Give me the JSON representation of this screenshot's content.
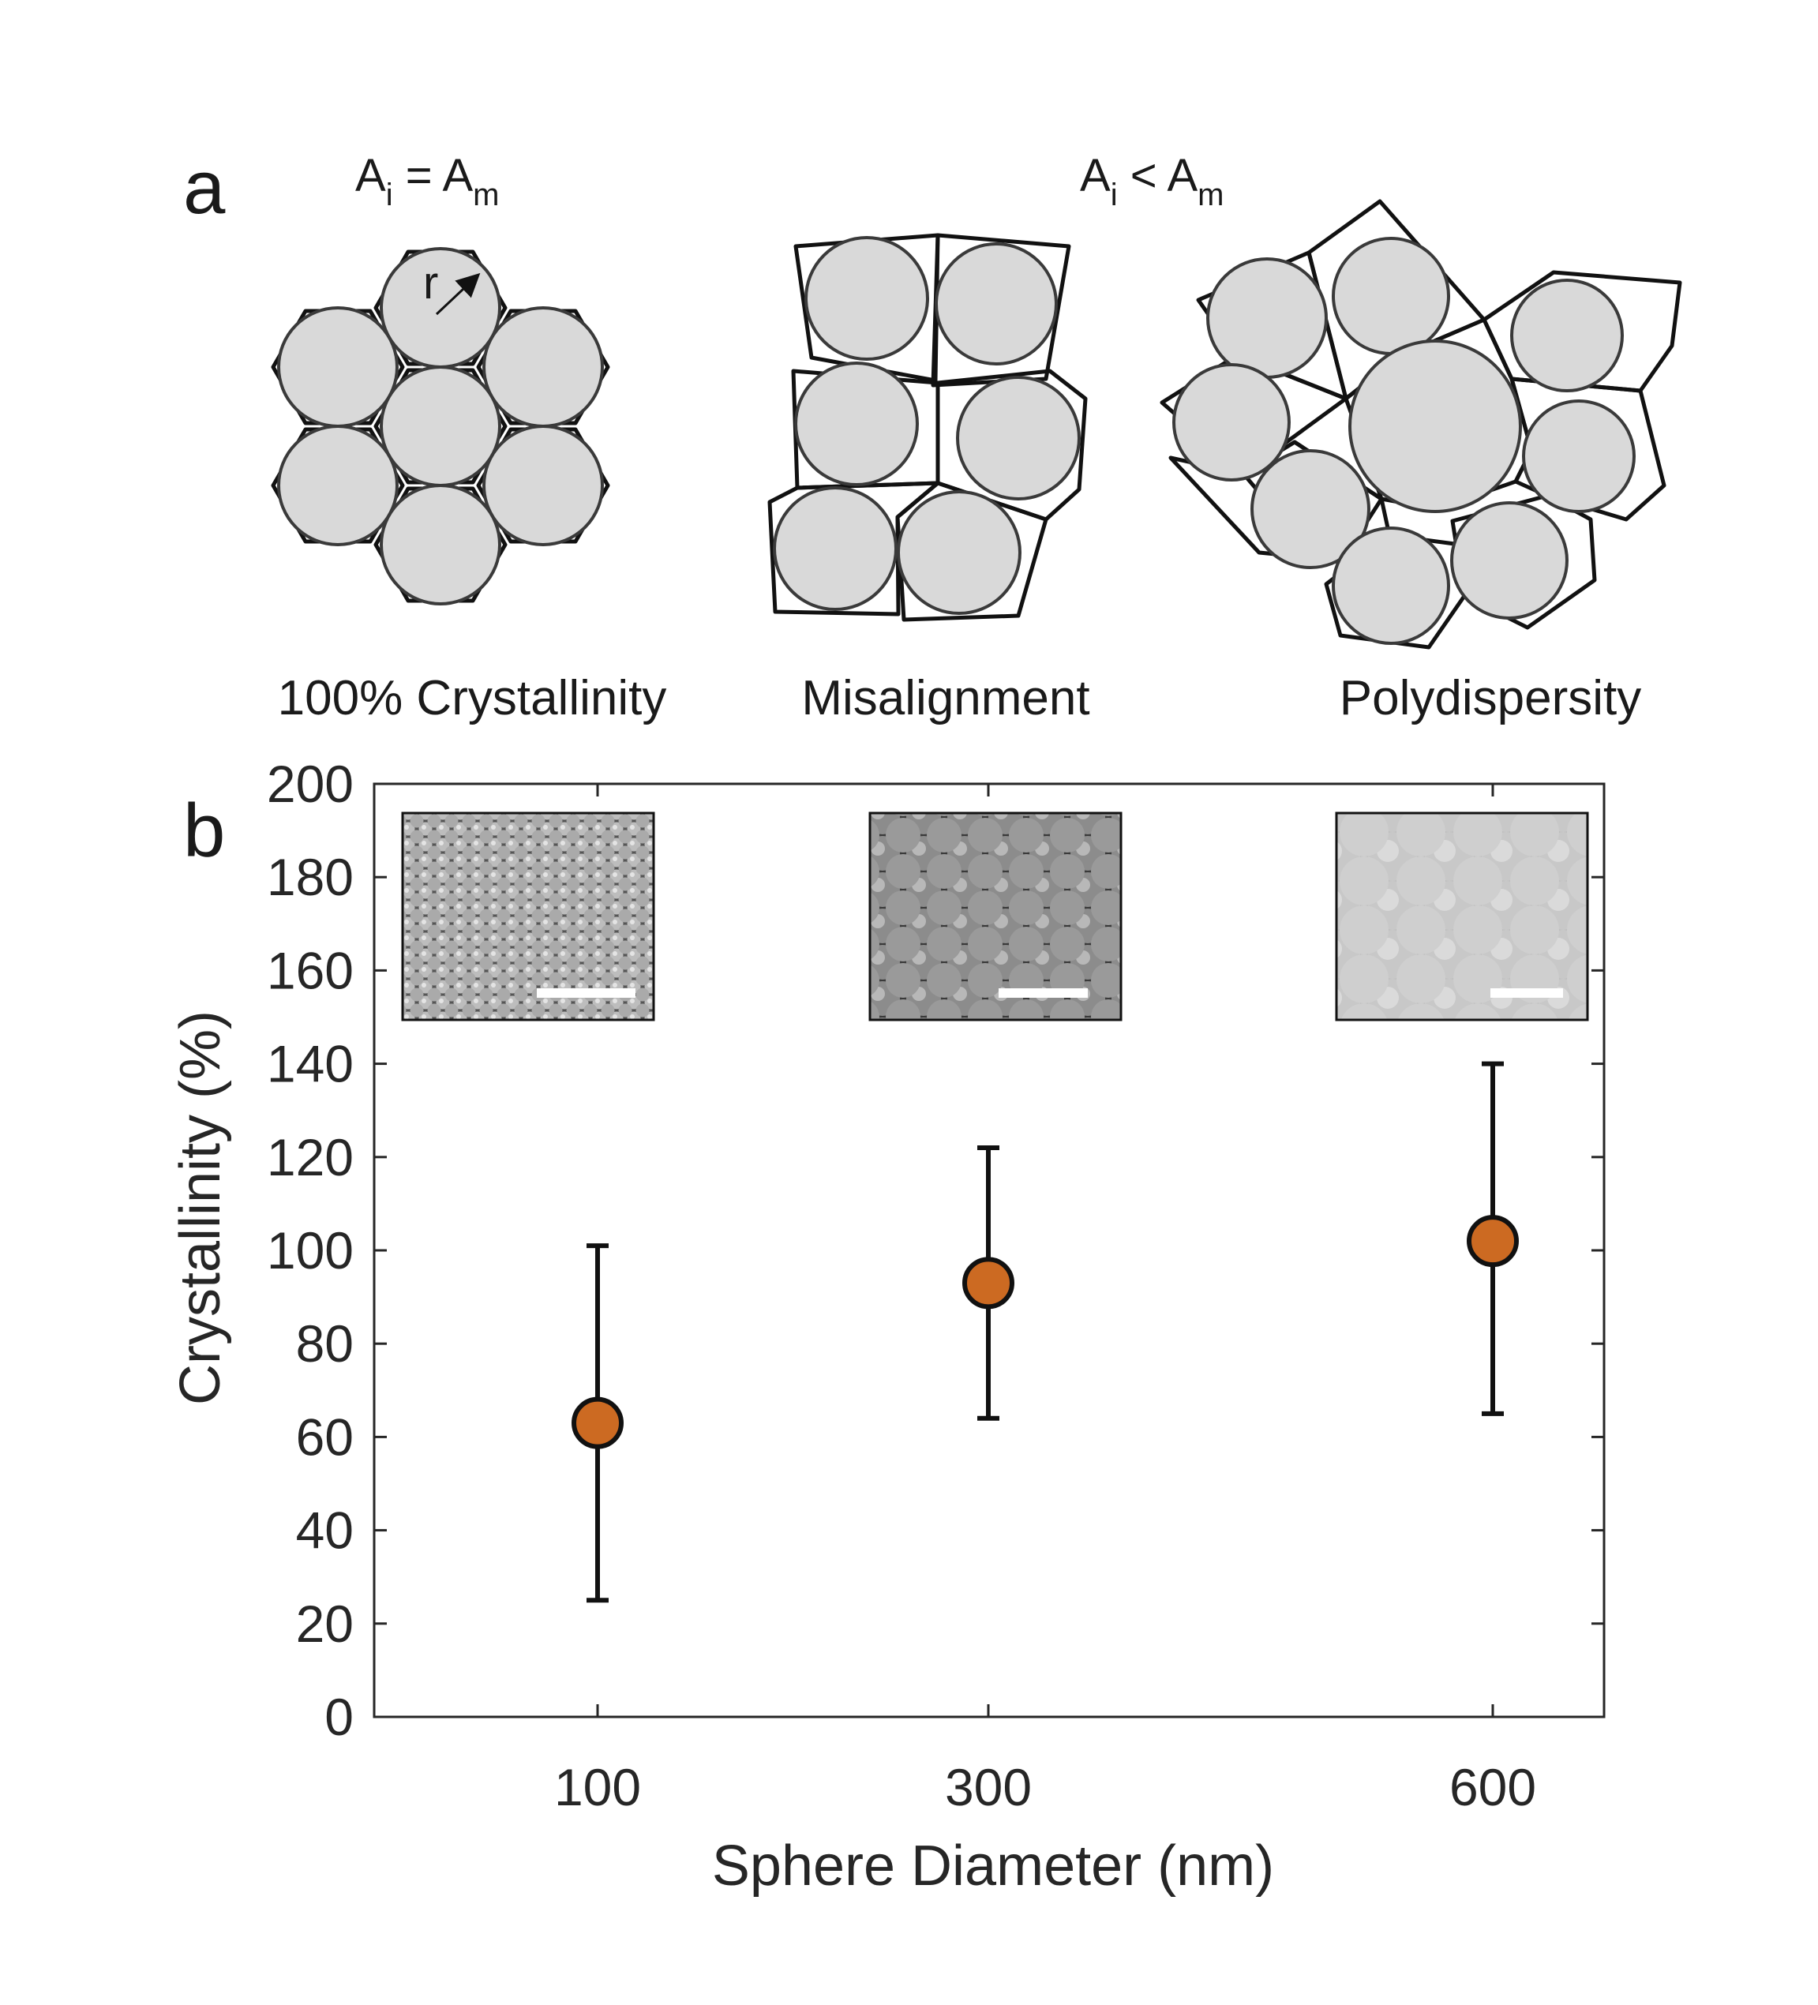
{
  "panel_a": {
    "letter": "a",
    "eq_left": {
      "a": "A",
      "sub1": "i",
      "op": " = A",
      "sub2": "m"
    },
    "eq_right": {
      "a": "A",
      "sub1": "i",
      "op": " < A",
      "sub2": "m"
    },
    "radius_label": "r",
    "captions": [
      "100% Crystallinity",
      "Misalignment",
      "Polydispersity"
    ]
  },
  "panel_b": {
    "letter": "b"
  },
  "chart_data": {
    "type": "scatter",
    "title": "",
    "xlabel": "Sphere Diameter (nm)",
    "ylabel": "Crystallinity (%)",
    "categories": [
      "100",
      "300",
      "600"
    ],
    "ylim": [
      0,
      200
    ],
    "yticks": [
      0,
      20,
      40,
      60,
      80,
      100,
      120,
      140,
      160,
      180,
      200
    ],
    "series": [
      {
        "values": [
          63,
          93,
          102
        ],
        "err_low": [
          25,
          64,
          65
        ],
        "err_high": [
          101,
          122,
          140
        ],
        "color": "#cc6a22"
      }
    ],
    "insets": [
      "SEM image 100 nm spheres",
      "SEM image 300 nm spheres",
      "SEM image 600 nm spheres"
    ],
    "grid": false
  }
}
